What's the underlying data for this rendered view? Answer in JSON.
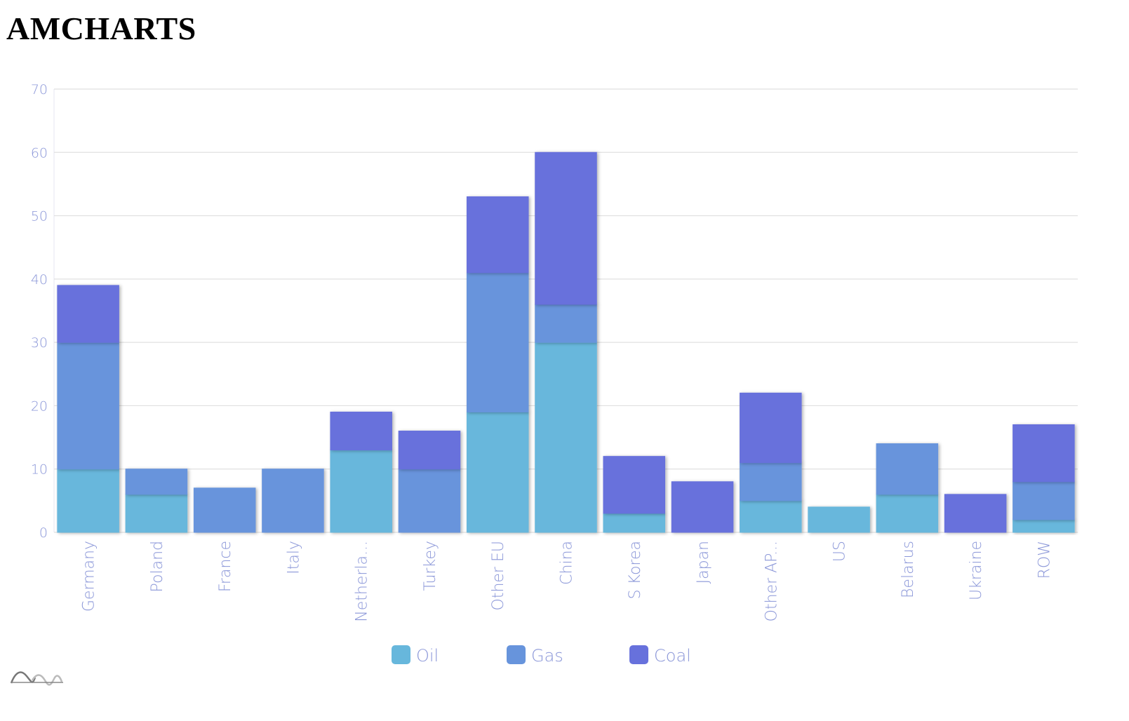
{
  "page": {
    "title": "AMCHARTS"
  },
  "colors": {
    "oil": "#67b7dc",
    "gas": "#6794dc",
    "coal": "#6771dc",
    "axis_text": "#8a96d8",
    "grid": "#e0e0e0"
  },
  "logo": {
    "name": "amcharts-logo"
  },
  "chart_data": {
    "type": "bar",
    "stacked": true,
    "title": "",
    "xlabel": "",
    "ylabel": "",
    "ylim": [
      0,
      70
    ],
    "yticks": [
      0,
      10,
      20,
      30,
      40,
      50,
      60,
      70
    ],
    "grid": true,
    "legend_position": "bottom",
    "categories": [
      "Germany",
      "Poland",
      "France",
      "Italy",
      "Netherla...",
      "Turkey",
      "Other EU",
      "China",
      "S Korea",
      "Japan",
      "Other AP...",
      "US",
      "Belarus",
      "Ukraine",
      "ROW"
    ],
    "series": [
      {
        "name": "Oil",
        "color": "#67b7dc",
        "values": [
          10,
          6,
          0,
          0,
          13,
          0,
          19,
          30,
          3,
          0,
          5,
          4,
          6,
          0,
          2
        ]
      },
      {
        "name": "Gas",
        "color": "#6794dc",
        "values": [
          20,
          4,
          7,
          10,
          0,
          10,
          22,
          6,
          0,
          0,
          6,
          0,
          8,
          0,
          6
        ]
      },
      {
        "name": "Coal",
        "color": "#6771dc",
        "values": [
          9,
          0,
          0,
          0,
          6,
          6,
          12,
          24,
          9,
          8,
          11,
          0,
          0,
          6,
          9
        ]
      }
    ]
  }
}
